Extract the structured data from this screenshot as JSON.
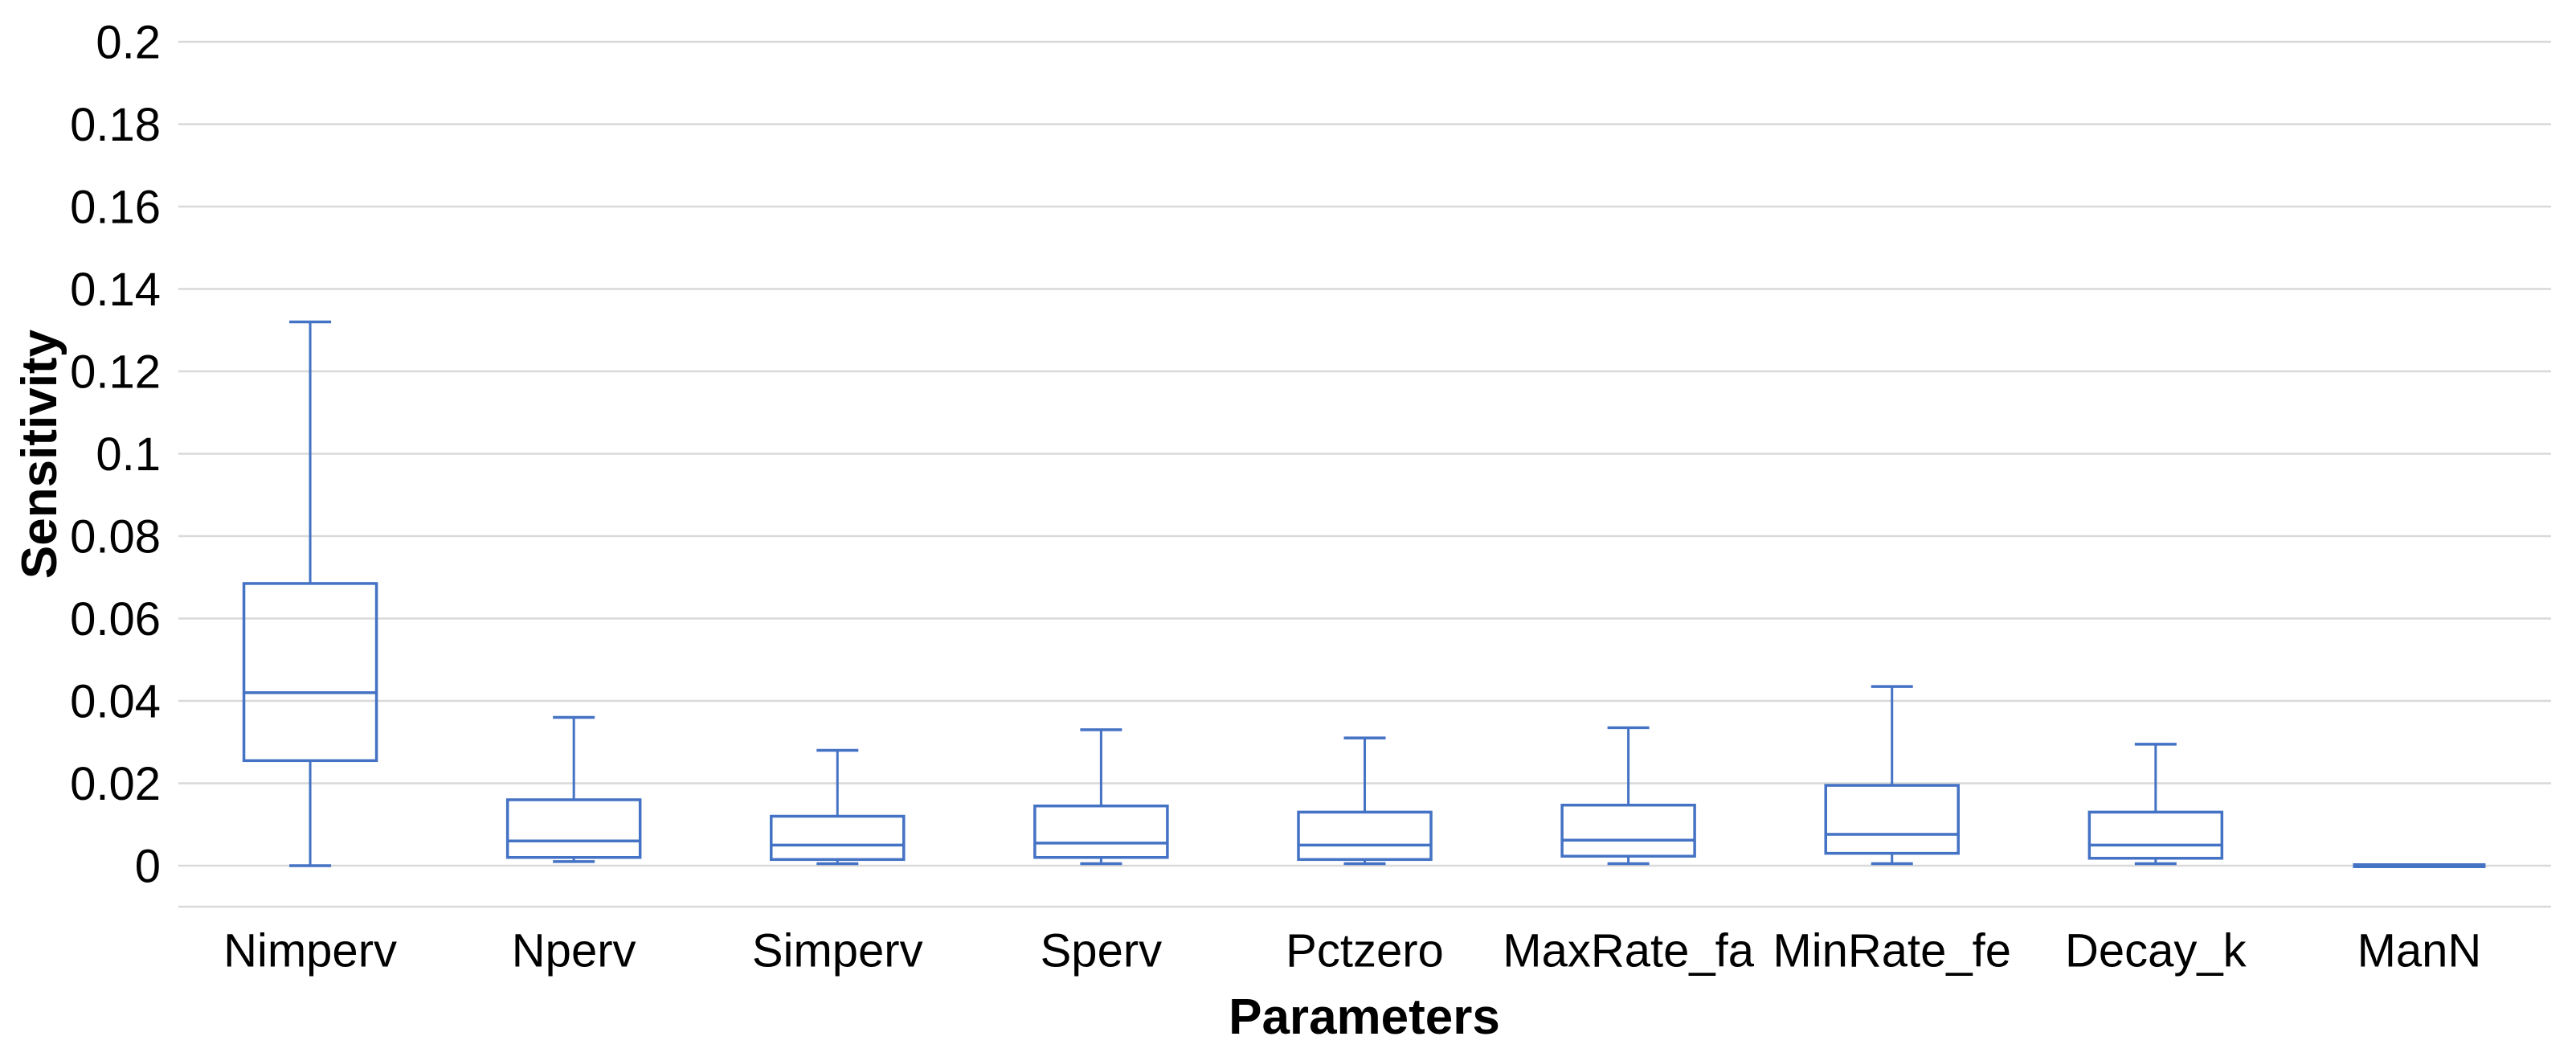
{
  "chart_data": {
    "type": "box",
    "title": "",
    "xlabel": "Parameters",
    "ylabel": "Sensitivity",
    "grid": "horizontal-only",
    "legend": "none",
    "ylim": [
      -0.01,
      0.2
    ],
    "ytick_values": [
      0,
      0.02,
      0.04,
      0.06,
      0.08,
      0.1,
      0.12,
      0.14,
      0.16,
      0.18,
      0.2
    ],
    "ytick_labels": [
      "0",
      "0.02",
      "0.04",
      "0.06",
      "0.08",
      "0.1",
      "0.12",
      "0.14",
      "0.16",
      "0.18",
      "0.2"
    ],
    "categories": [
      "Nimperv",
      "Nperv",
      "Simperv",
      "Sperv",
      "Pctzero",
      "MaxRate_fa",
      "MinRate_fe",
      "Decay_k",
      "ManN"
    ],
    "boxes": [
      {
        "category": "Nimperv",
        "whisker_low": 0.0,
        "q1": 0.0255,
        "median": 0.042,
        "q3": 0.0685,
        "whisker_high": 0.132
      },
      {
        "category": "Nperv",
        "whisker_low": 0.001,
        "q1": 0.002,
        "median": 0.006,
        "q3": 0.016,
        "whisker_high": 0.036
      },
      {
        "category": "Simperv",
        "whisker_low": 0.0005,
        "q1": 0.0015,
        "median": 0.005,
        "q3": 0.012,
        "whisker_high": 0.028
      },
      {
        "category": "Sperv",
        "whisker_low": 0.0005,
        "q1": 0.002,
        "median": 0.0055,
        "q3": 0.0145,
        "whisker_high": 0.033
      },
      {
        "category": "Pctzero",
        "whisker_low": 0.0005,
        "q1": 0.0015,
        "median": 0.005,
        "q3": 0.013,
        "whisker_high": 0.031
      },
      {
        "category": "MaxRate_fa",
        "whisker_low": 0.0005,
        "q1": 0.0023,
        "median": 0.0062,
        "q3": 0.0147,
        "whisker_high": 0.0335
      },
      {
        "category": "MinRate_fe",
        "whisker_low": 0.0005,
        "q1": 0.003,
        "median": 0.0076,
        "q3": 0.0195,
        "whisker_high": 0.0435
      },
      {
        "category": "Decay_k",
        "whisker_low": 0.0005,
        "q1": 0.0018,
        "median": 0.005,
        "q3": 0.013,
        "whisker_high": 0.0295
      },
      {
        "category": "ManN",
        "whisker_low": 0.0,
        "q1": 0.0,
        "median": 0.0,
        "q3": 0.0,
        "whisker_high": 0.0
      }
    ],
    "colors": {
      "box_stroke": "#4472C4",
      "gridline": "#D9D9D9",
      "plot_border_bottom": "#D9D9D9",
      "text": "#000000",
      "background": "#FFFFFF"
    }
  }
}
